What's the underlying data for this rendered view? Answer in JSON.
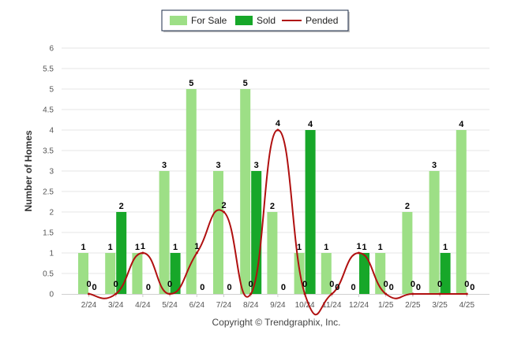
{
  "chart_data": {
    "type": "bar",
    "categories": [
      "2/24",
      "3/24",
      "4/24",
      "5/24",
      "6/24",
      "7/24",
      "8/24",
      "9/24",
      "10/24",
      "11/24",
      "12/24",
      "1/25",
      "2/25",
      "3/25",
      "4/25"
    ],
    "series": [
      {
        "name": "For Sale",
        "kind": "bar",
        "color": "#9ddf86",
        "values": [
          1,
          1,
          1,
          3,
          5,
          3,
          5,
          2,
          1,
          1,
          0,
          1,
          2,
          3,
          4
        ]
      },
      {
        "name": "Sold",
        "kind": "bar",
        "color": "#17a729",
        "values": [
          0,
          2,
          0,
          1,
          0,
          0,
          3,
          0,
          4,
          0,
          1,
          0,
          0,
          1,
          0
        ]
      },
      {
        "name": "Pended",
        "kind": "line",
        "color": "#b01010",
        "values": [
          0,
          0,
          1,
          0,
          1,
          2,
          0,
          4,
          0,
          0,
          1,
          0,
          0,
          0,
          0
        ]
      }
    ],
    "ylabel": "Number of Homes",
    "xlabel": "",
    "ylim": [
      0,
      6
    ],
    "yticks": [
      "0",
      "0.5",
      "1",
      "1.5",
      "2",
      "2.5",
      "3",
      "3.5",
      "4",
      "4.5",
      "5",
      "5.5",
      "6"
    ],
    "legend_position": "top-center",
    "grid": true
  },
  "footer": "Copyright © Trendgraphix, Inc."
}
